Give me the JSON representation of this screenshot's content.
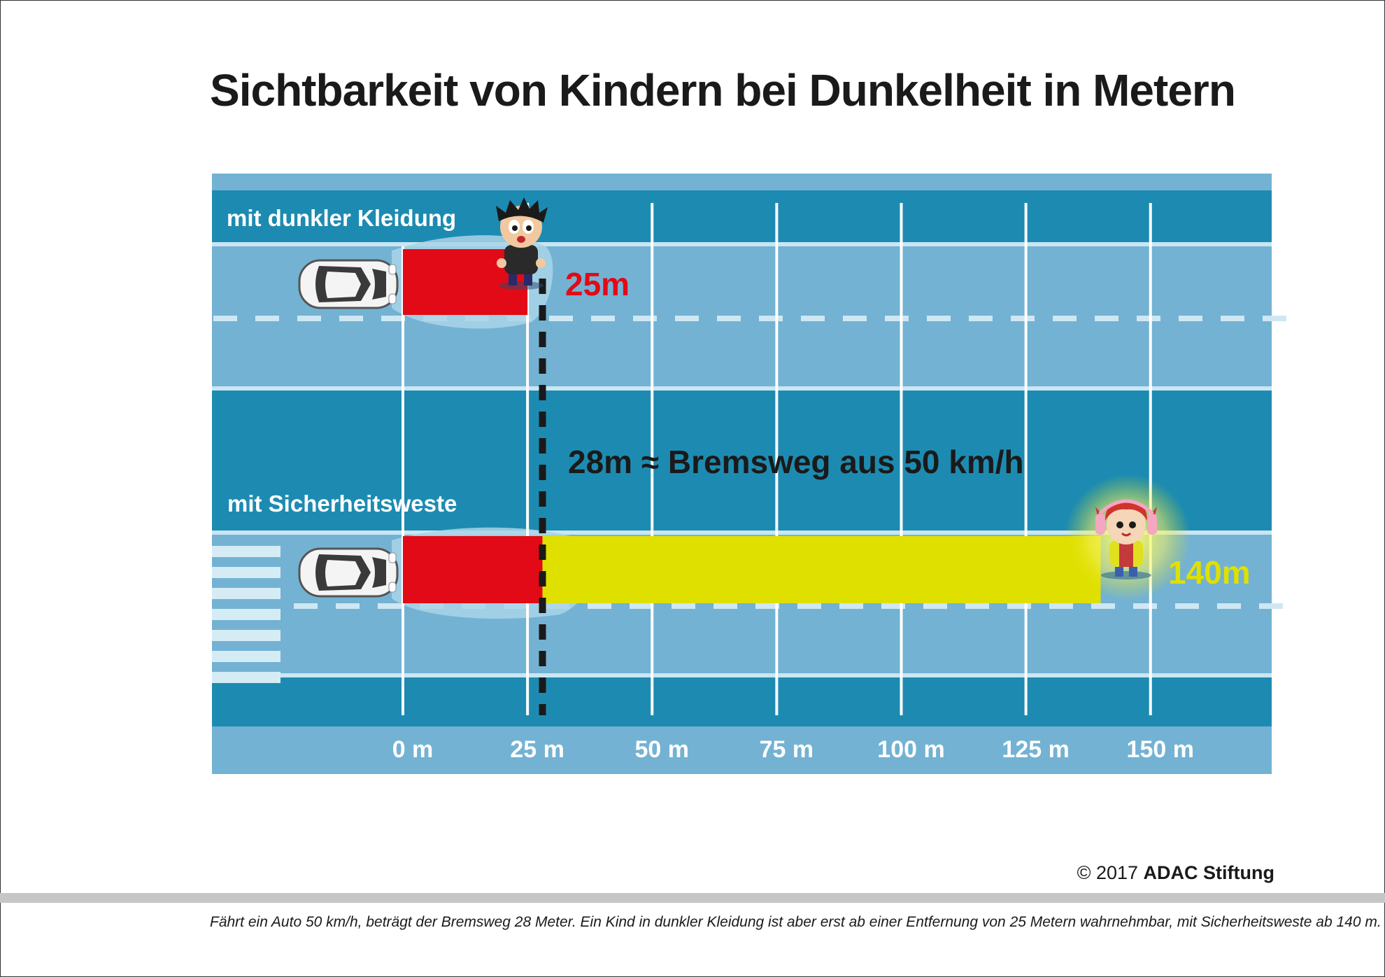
{
  "title": "Sichtbarkeit von Kindern bei Dunkelheit in Metern",
  "chart_data": {
    "type": "bar",
    "orientation": "horizontal",
    "title": "Sichtbarkeit von Kindern bei Dunkelheit in Metern",
    "categories": [
      "mit dunkler Kleidung",
      "mit Sicherheitsweste"
    ],
    "values": [
      25,
      140
    ],
    "value_labels": [
      "25m",
      "140m"
    ],
    "bar_colors": [
      "#e20a16",
      "#dfe000"
    ],
    "braking_distance": 28,
    "annotation": "28m ≈ Bremsweg aus 50 km/h",
    "xlim": [
      0,
      160
    ],
    "ticks": [
      0,
      25,
      50,
      75,
      100,
      125,
      150
    ],
    "tick_labels": [
      "0 m",
      "25 m",
      "50 m",
      "75 m",
      "100 m",
      "125 m",
      "150 m"
    ],
    "grid": true
  },
  "colors": {
    "road_light": "#73b2d3",
    "road_dark": "#1d8bb1",
    "red": "#e20a16",
    "yellow": "#dfe000",
    "dashed_line": "#1a1a1a"
  },
  "icons": [
    "car-icon",
    "child-dark-icon",
    "child-vest-icon",
    "crosswalk"
  ],
  "copyright": {
    "prefix": "© 2017 ",
    "brand": "ADAC Stiftung"
  },
  "caption": "Fährt ein Auto 50 km/h, beträgt der Bremsweg 28 Meter. Ein Kind in dunkler Kleidung ist aber erst ab einer Entfernung von 25 Metern wahrnehmbar, mit Sicherheitsweste ab 140 m."
}
